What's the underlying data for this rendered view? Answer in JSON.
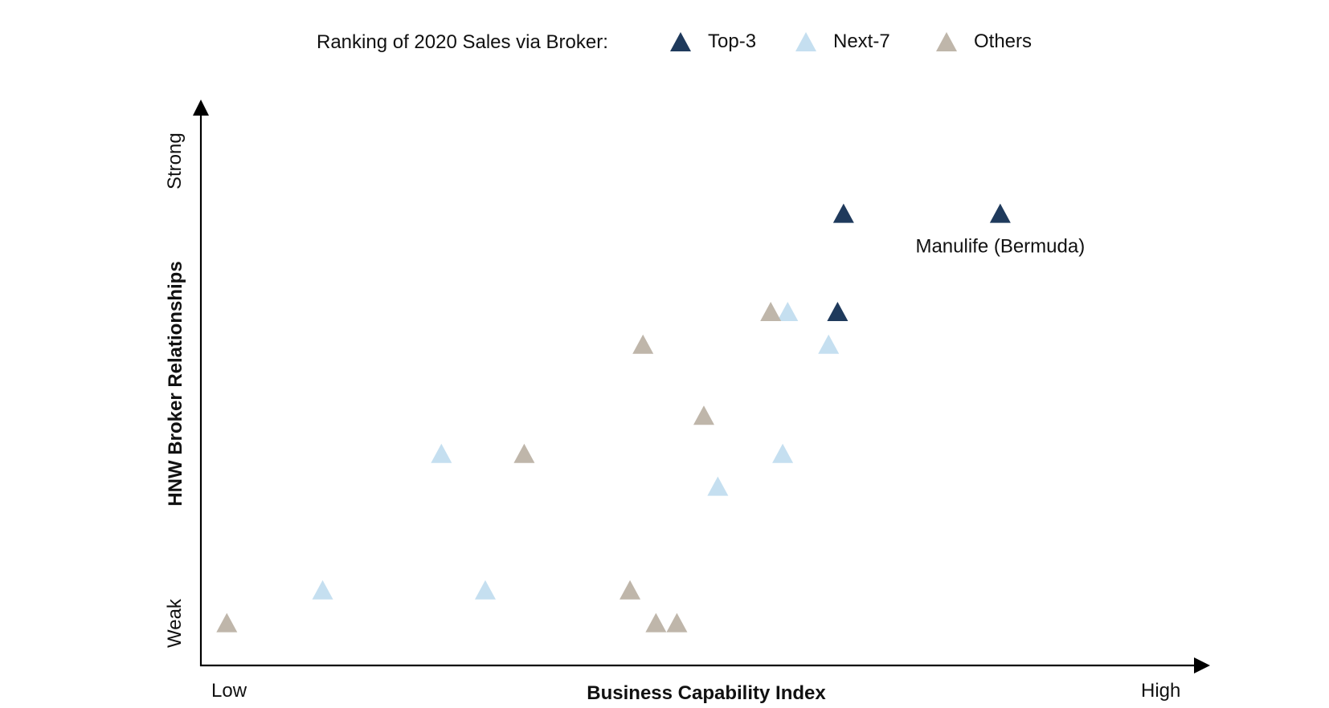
{
  "legend": {
    "title": "Ranking of 2020 Sales via Broker:"
  },
  "chart_data": {
    "type": "scatter",
    "title": "",
    "xlabel": "Business Capability Index",
    "ylabel": "HNW Broker Relationships",
    "x_tick_labels": {
      "low": "Low",
      "high": "High"
    },
    "y_tick_labels": {
      "low": "Weak",
      "high": "Strong"
    },
    "xlim": [
      0,
      100
    ],
    "ylim": [
      0,
      10
    ],
    "legend_position": "top",
    "grid": false,
    "marker": "triangle",
    "series": [
      {
        "name": "Top-3",
        "color": "#1f3a5c",
        "points": [
          {
            "x": 64.4,
            "y": 8.3
          },
          {
            "x": 80.1,
            "y": 8.3
          },
          {
            "x": 63.8,
            "y": 6.5
          }
        ]
      },
      {
        "name": "Next-7",
        "color": "#c5dff0",
        "points": [
          {
            "x": 58.8,
            "y": 6.5
          },
          {
            "x": 62.9,
            "y": 5.9
          },
          {
            "x": 24.1,
            "y": 3.9
          },
          {
            "x": 58.3,
            "y": 3.9
          },
          {
            "x": 51.8,
            "y": 3.3
          },
          {
            "x": 12.2,
            "y": 1.4
          },
          {
            "x": 28.5,
            "y": 1.4
          }
        ]
      },
      {
        "name": "Others",
        "color": "#bfb6aa",
        "points": [
          {
            "x": 57.1,
            "y": 6.5
          },
          {
            "x": 44.3,
            "y": 5.9
          },
          {
            "x": 50.4,
            "y": 4.6
          },
          {
            "x": 32.4,
            "y": 3.9
          },
          {
            "x": 43.0,
            "y": 1.4
          },
          {
            "x": 2.6,
            "y": 0.8
          },
          {
            "x": 45.6,
            "y": 0.8
          },
          {
            "x": 47.7,
            "y": 0.8
          }
        ]
      }
    ],
    "annotations": [
      {
        "text": "Manulife (Bermuda)",
        "x": 80.1,
        "y": 8.3
      }
    ]
  }
}
